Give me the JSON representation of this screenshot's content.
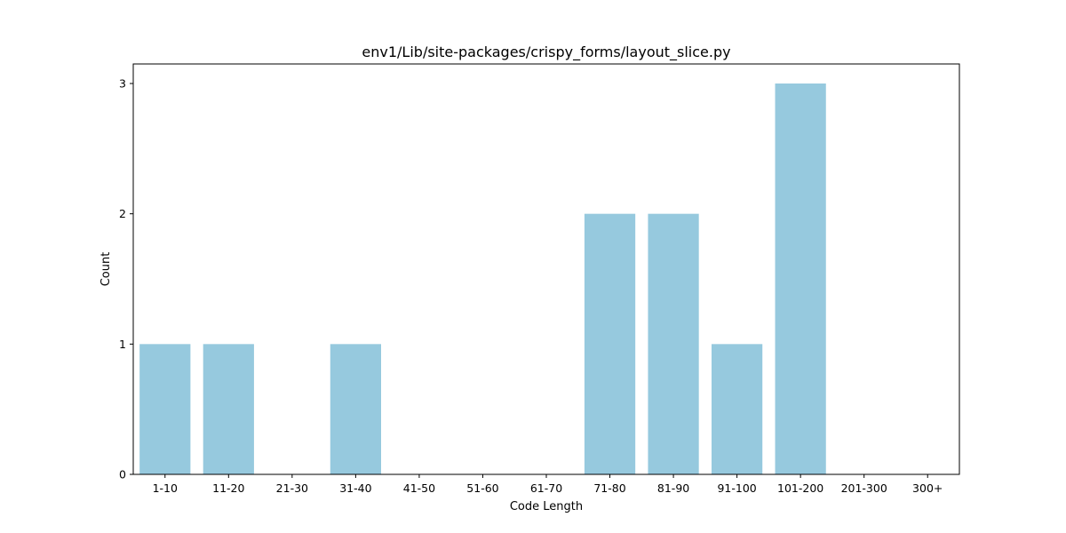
{
  "chart_data": {
    "type": "bar",
    "title": "env1/Lib/site-packages/crispy_forms/layout_slice.py",
    "xlabel": "Code Length",
    "ylabel": "Count",
    "categories": [
      "1-10",
      "11-20",
      "21-30",
      "31-40",
      "41-50",
      "51-60",
      "61-70",
      "71-80",
      "81-90",
      "91-100",
      "101-200",
      "201-300",
      "300+"
    ],
    "values": [
      1,
      1,
      0,
      1,
      0,
      0,
      0,
      2,
      2,
      1,
      3,
      0,
      0
    ],
    "yticks": [
      0,
      1,
      2,
      3
    ],
    "ylim": [
      0,
      3.15
    ],
    "grid": false,
    "bar_color": "#96c9de"
  }
}
